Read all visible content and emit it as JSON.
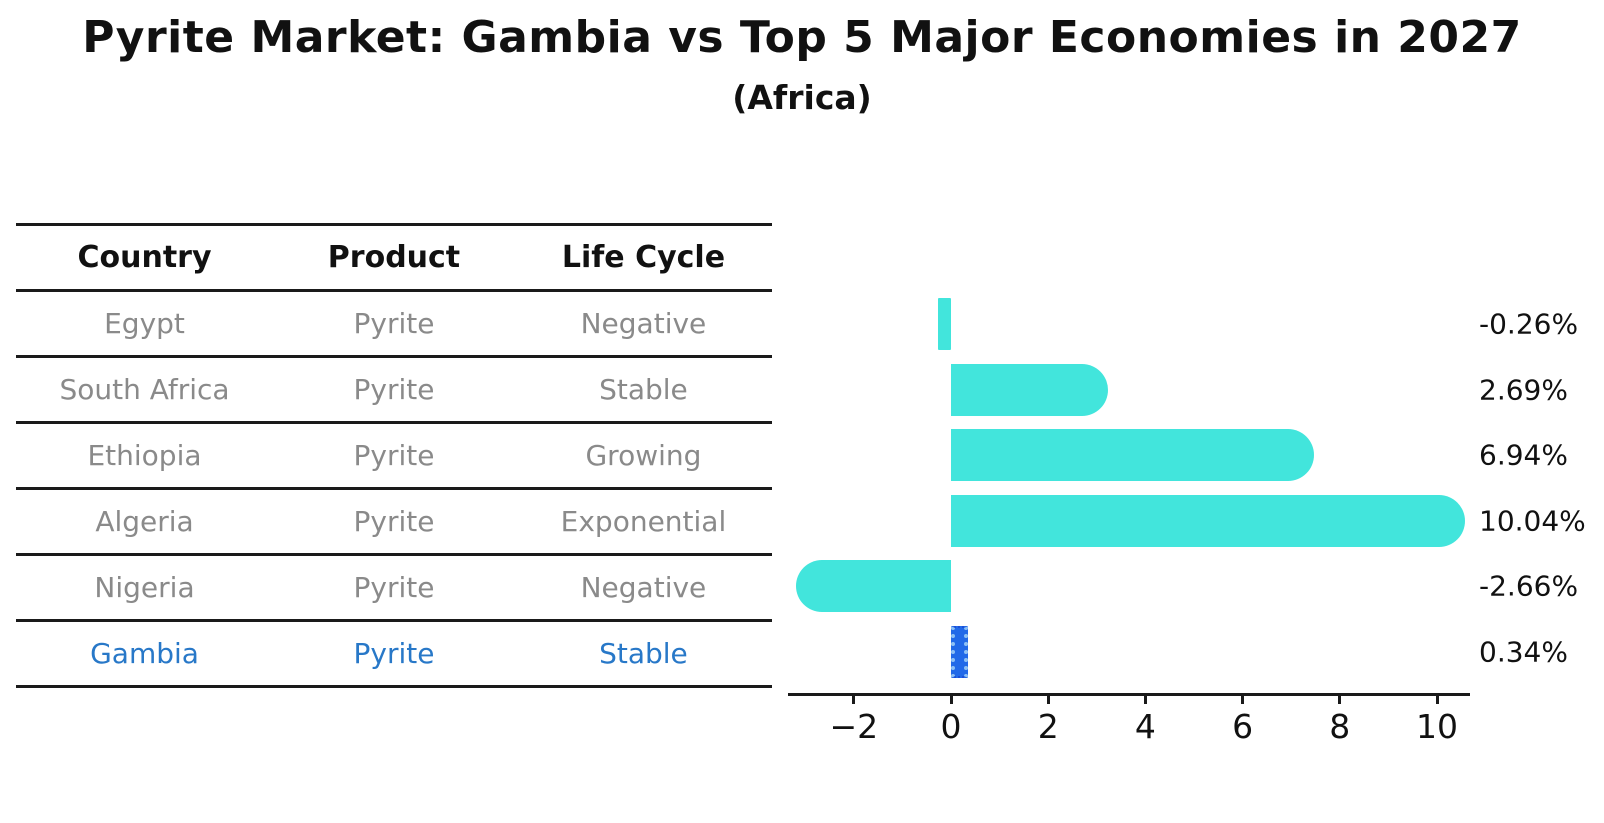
{
  "title": "Pyrite Market: Gambia vs Top 5 Major Economies in 2027",
  "subtitle": "(Africa)",
  "table": {
    "headers": [
      "Country",
      "Product",
      "Life Cycle"
    ],
    "rows": [
      {
        "country": "Egypt",
        "product": "Pyrite",
        "life_cycle": "Negative",
        "highlight": false
      },
      {
        "country": "South Africa",
        "product": "Pyrite",
        "life_cycle": "Stable",
        "highlight": false
      },
      {
        "country": "Ethiopia",
        "product": "Pyrite",
        "life_cycle": "Growing",
        "highlight": false
      },
      {
        "country": "Algeria",
        "product": "Pyrite",
        "life_cycle": "Exponential",
        "highlight": false
      },
      {
        "country": "Nigeria",
        "product": "Pyrite",
        "life_cycle": "Negative",
        "highlight": false
      },
      {
        "country": "Gambia",
        "product": "Pyrite",
        "life_cycle": "Stable",
        "highlight": true
      }
    ]
  },
  "chart_data": {
    "type": "bar",
    "orientation": "horizontal",
    "title": "Pyrite Market: Gambia vs Top 5 Major Economies in 2027 (Africa)",
    "categories": [
      "Egypt",
      "South Africa",
      "Ethiopia",
      "Algeria",
      "Nigeria",
      "Gambia"
    ],
    "values": [
      -0.26,
      2.69,
      6.94,
      10.04,
      -2.66,
      0.34
    ],
    "value_labels": [
      "-0.26%",
      "2.69%",
      "6.94%",
      "10.04%",
      "-2.66%",
      "0.34%"
    ],
    "unit": "%",
    "x_ticks": [
      -2,
      0,
      2,
      4,
      6,
      8,
      10
    ],
    "x_tick_labels": [
      "−2",
      "0",
      "2",
      "4",
      "6",
      "8",
      "10"
    ],
    "xlim": [
      -3.35,
      10.7
    ],
    "grid": false,
    "legend": "none",
    "highlight_index": 5,
    "colors": {
      "bar": "#42E5DC",
      "highlight_bar": "#2169E8",
      "highlight_text": "#2878C8",
      "table_text": "#8a8a8a",
      "header_text": "#111111",
      "axis": "#1a1a1a"
    }
  }
}
